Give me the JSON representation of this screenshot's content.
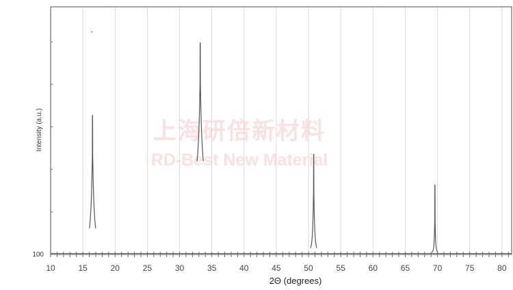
{
  "chart_data": {
    "type": "line",
    "title": "",
    "xlabel": "2Θ (degrees)",
    "ylabel": "Intensity (a.u.)",
    "xlim": [
      10,
      81.5
    ],
    "xticks": [
      10,
      15,
      20,
      25,
      30,
      35,
      40,
      45,
      50,
      55,
      60,
      65,
      70,
      75,
      80
    ],
    "yscale": "log",
    "ylim": [
      100,
      66000000
    ],
    "yticks_labeled": [
      "100"
    ],
    "grid": "vertical",
    "legend": "none",
    "line_color": "#555555",
    "baseline": 105,
    "peaks": [
      {
        "x": 16.5,
        "y": 190000
      },
      {
        "x": 33.2,
        "y": 9600000
      },
      {
        "x": 50.8,
        "y": 23000
      },
      {
        "x": 69.6,
        "y": 4400
      }
    ],
    "outlier_point": {
      "x": 16.4,
      "y": 17000000
    }
  },
  "watermark": {
    "line1": "上海研倍新材料",
    "line2": "RD-Best New Material",
    "color": "#f7c9c9"
  }
}
